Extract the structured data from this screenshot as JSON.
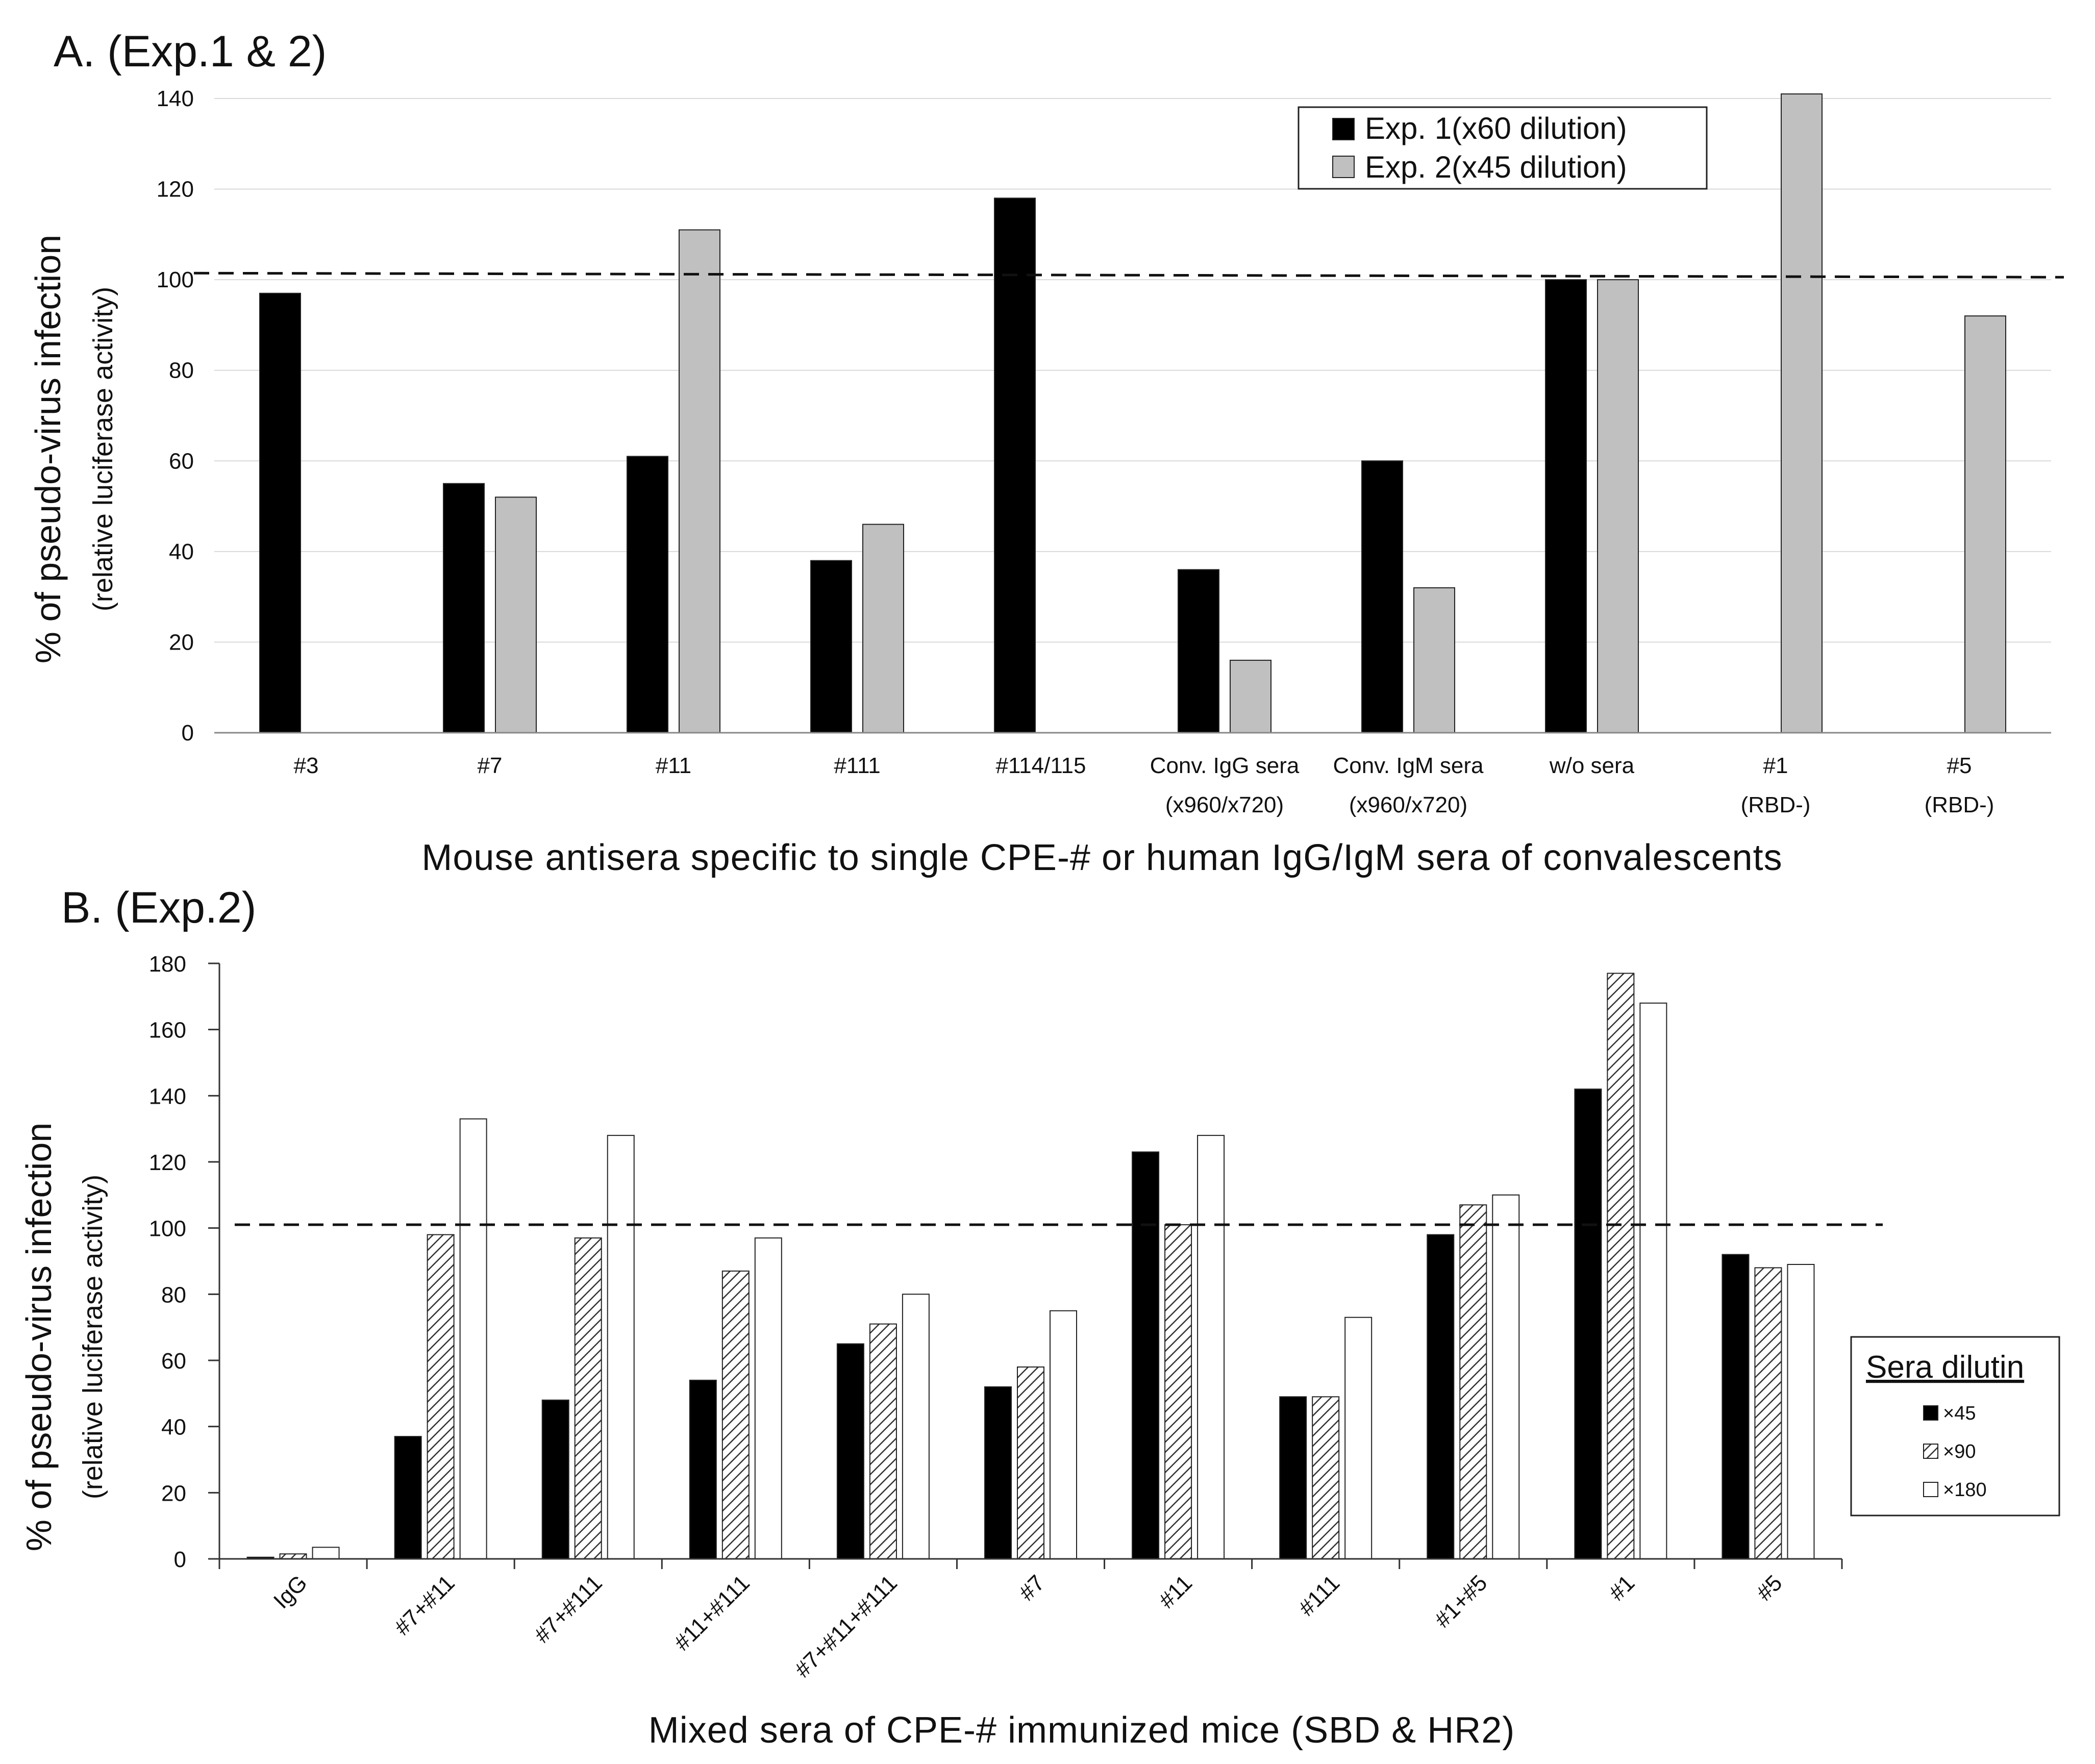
{
  "chart_data": [
    {
      "type": "bar",
      "panel": "A. (Exp.1 & 2)",
      "title": "A. (Exp.1 & 2)",
      "xlabel": "Mouse antisera specific to single CPE-# or human IgG/IgM sera of convalescents",
      "ylabel": "% of pseudo-virus infection",
      "ylabel2": "(relative luciferase activity)",
      "ylim": [
        0,
        140
      ],
      "yticks": [
        "0",
        "20",
        "40",
        "60",
        "80",
        "100",
        "120",
        "140"
      ],
      "categories": [
        {
          "line1": "#3",
          "line2": ""
        },
        {
          "line1": "#7",
          "line2": ""
        },
        {
          "line1": "#11",
          "line2": ""
        },
        {
          "line1": "#111",
          "line2": ""
        },
        {
          "line1": "#114/115",
          "line2": ""
        },
        {
          "line1": "Conv. IgG sera",
          "line2": "(x960/x720)"
        },
        {
          "line1": "Conv. IgM sera",
          "line2": "(x960/x720)"
        },
        {
          "line1": "w/o sera",
          "line2": ""
        },
        {
          "line1": "#1",
          "line2": "(RBD-)"
        },
        {
          "line1": "#5",
          "line2": "(RBD-)"
        }
      ],
      "series": [
        {
          "name": "Exp. 1(x60 dilution)",
          "color": "#000000",
          "pattern": "solid",
          "values": [
            97,
            55,
            61,
            38,
            118,
            36,
            60,
            100,
            null,
            null
          ]
        },
        {
          "name": "Exp. 2(x45 dilution)",
          "color": "#c0c0c0",
          "pattern": "solid",
          "values": [
            null,
            52,
            111,
            46,
            null,
            16,
            32,
            100,
            141,
            92
          ]
        }
      ],
      "reference_line": 101,
      "legend_position": "top-right",
      "grid": true
    },
    {
      "type": "bar",
      "panel": "B. (Exp.2)",
      "title": "B. (Exp.2)",
      "xlabel": "Mixed sera of CPE-# immunized mice (SBD & HR2)",
      "ylabel": "% of pseudo-virus infection",
      "ylabel2": "(relative luciferase activity)",
      "ylim": [
        0,
        180
      ],
      "yticks": [
        "0",
        "20",
        "40",
        "60",
        "80",
        "100",
        "120",
        "140",
        "160",
        "180"
      ],
      "categories": [
        "IgG",
        "#7+#11",
        "#7+#111",
        "#11+#111",
        "#7+#11+#111",
        "#7",
        "#11",
        "#111",
        "#1+#5",
        "#1",
        "#5"
      ],
      "legend_title": "Sera dilutin",
      "series": [
        {
          "name": "×45",
          "color": "#000000",
          "pattern": "solid",
          "values": [
            0.5,
            37,
            48,
            54,
            65,
            52,
            123,
            49,
            98,
            142,
            92
          ]
        },
        {
          "name": "×90",
          "color": "#ffffff",
          "pattern": "hatch",
          "values": [
            1.5,
            98,
            97,
            87,
            71,
            58,
            101,
            49,
            107,
            177,
            88
          ]
        },
        {
          "name": "×180",
          "color": "#ffffff",
          "pattern": "white",
          "values": [
            3.5,
            133,
            128,
            97,
            80,
            75,
            128,
            73,
            110,
            168,
            89
          ]
        }
      ],
      "reference_line": 101,
      "legend_position": "right",
      "grid": false
    }
  ]
}
